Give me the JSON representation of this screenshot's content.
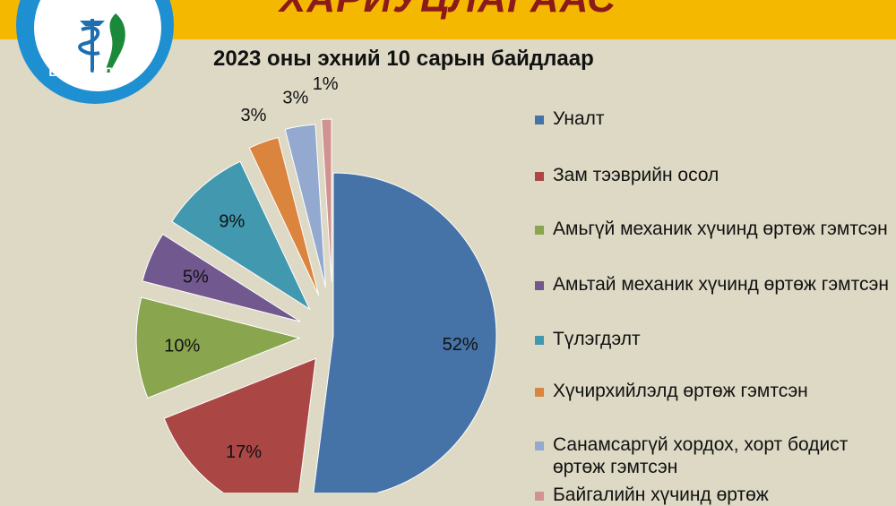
{
  "header": {
    "banner_title": "ХАРИУЦЛАГААС",
    "logo_text": "БАЯН-ӨЛГИЙ",
    "subtitle": "2023 оны эхний 10 сарын байдлаар"
  },
  "colors": {
    "background": "#ddd9c4",
    "topbar": "#f5b800",
    "banner_title": "#8b1a1a",
    "logo": "#1e8fd0"
  },
  "chart_data": {
    "type": "pie",
    "title": "2023 оны эхний 10 сарын байдлаар",
    "legend_position": "right",
    "categories": [
      "Уналт",
      "Зам тээврийн осол",
      "Амьгүй механик хүчинд өртөж гэмтсэн",
      "Амьтай механик хүчинд өртөж гэмтсэн",
      "Түлэгдэлт",
      "Хүчирхийлэлд өртөж гэмтсэн",
      "Санамсаргүй хордох, хорт бодист өртөж гэмтсэн",
      "Байгалийн хүчинд өртөж"
    ],
    "values": [
      52,
      17,
      10,
      5,
      9,
      3,
      3,
      1
    ],
    "data_labels": [
      "52%",
      "17%",
      "10%",
      "5%",
      "9%",
      "3%",
      "3%",
      "1%"
    ],
    "colors": [
      "#4572a7",
      "#aa4643",
      "#89a54e",
      "#71588f",
      "#4198af",
      "#db843d",
      "#93a9cf",
      "#d19392"
    ]
  }
}
